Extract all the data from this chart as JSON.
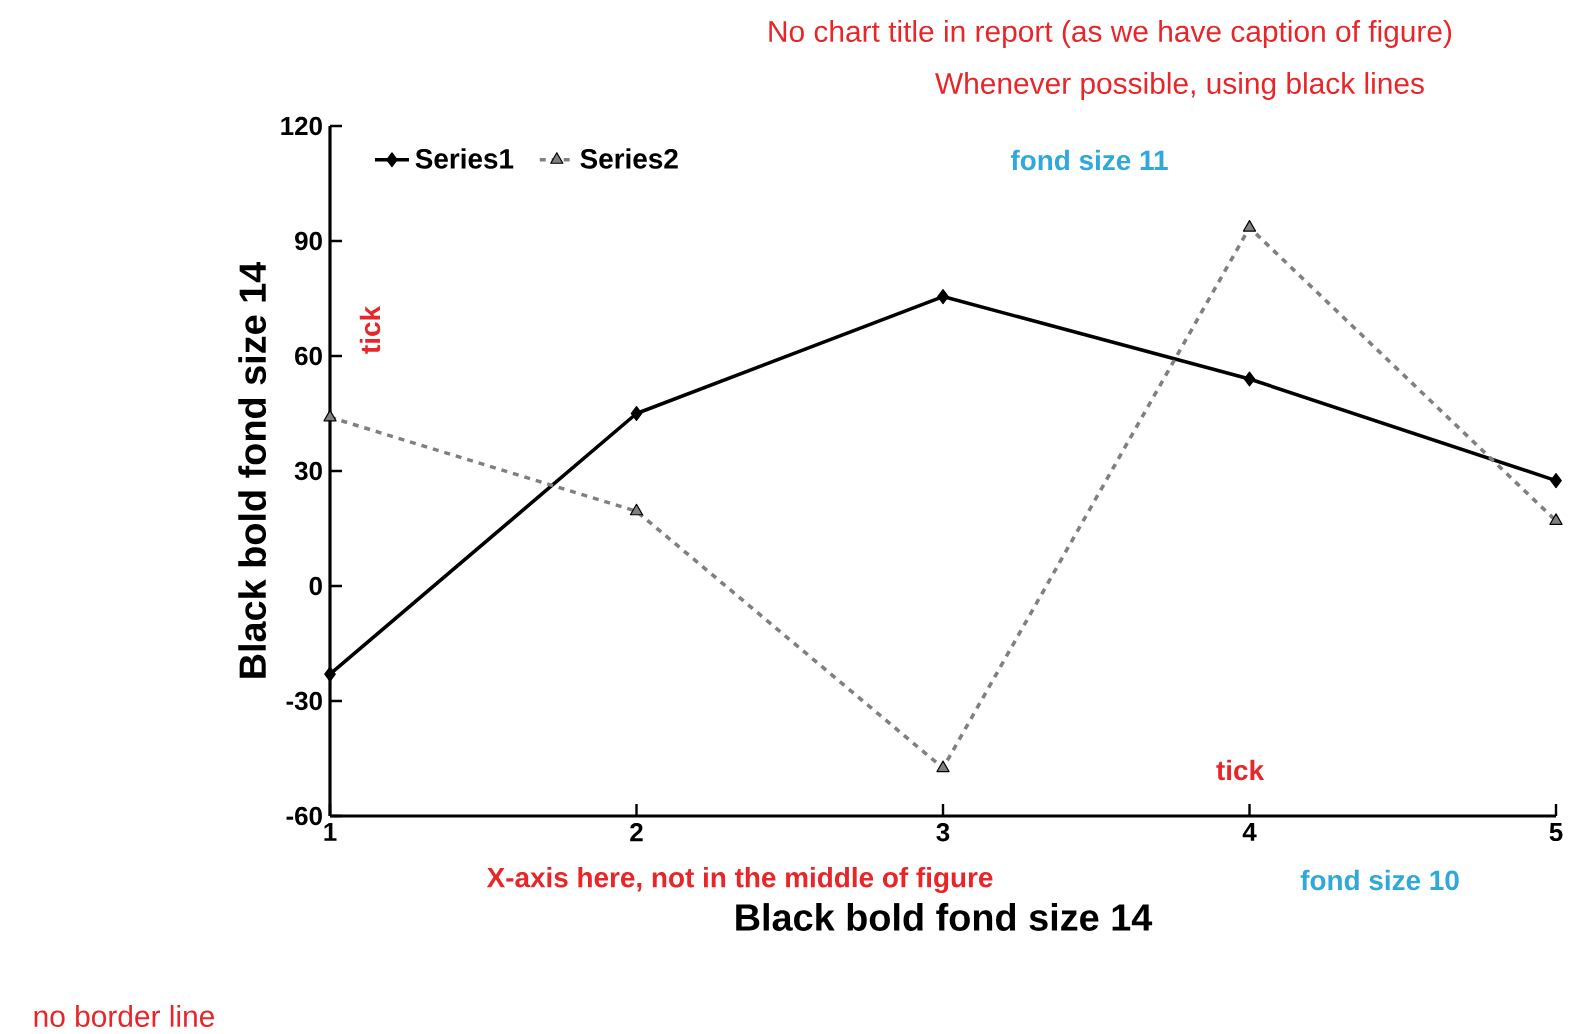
{
  "chart_data": {
    "type": "line",
    "xlabel": "Black bold fond size 14",
    "ylabel": "Black bold fond size 14",
    "x": [
      1,
      2,
      3,
      4,
      5
    ],
    "series": [
      {
        "name": "Series1",
        "color": "#000000",
        "values": [
          -23,
          45,
          75.5,
          54,
          27.5
        ],
        "marker": "diamond",
        "line_style": "solid"
      },
      {
        "name": "Series2",
        "color": "#808080",
        "values": [
          44,
          19.5,
          -47.5,
          93.5,
          17
        ],
        "marker": "triangle",
        "line_style": "dashed"
      }
    ],
    "xlim": [
      1,
      5
    ],
    "xticks": [
      1,
      2,
      3,
      4,
      5
    ],
    "ylim": [
      -60,
      120
    ],
    "yticks": [
      -60,
      -30,
      0,
      30,
      60,
      90,
      120
    ],
    "legend": "top left",
    "annotations": [
      "No chart title in report (as we have caption of figure)",
      "Whenever possible, using black lines",
      "fond size 11",
      "tick",
      "tick",
      "X-axis here, not in the middle of figure",
      "fond size 10",
      "no border line"
    ]
  }
}
